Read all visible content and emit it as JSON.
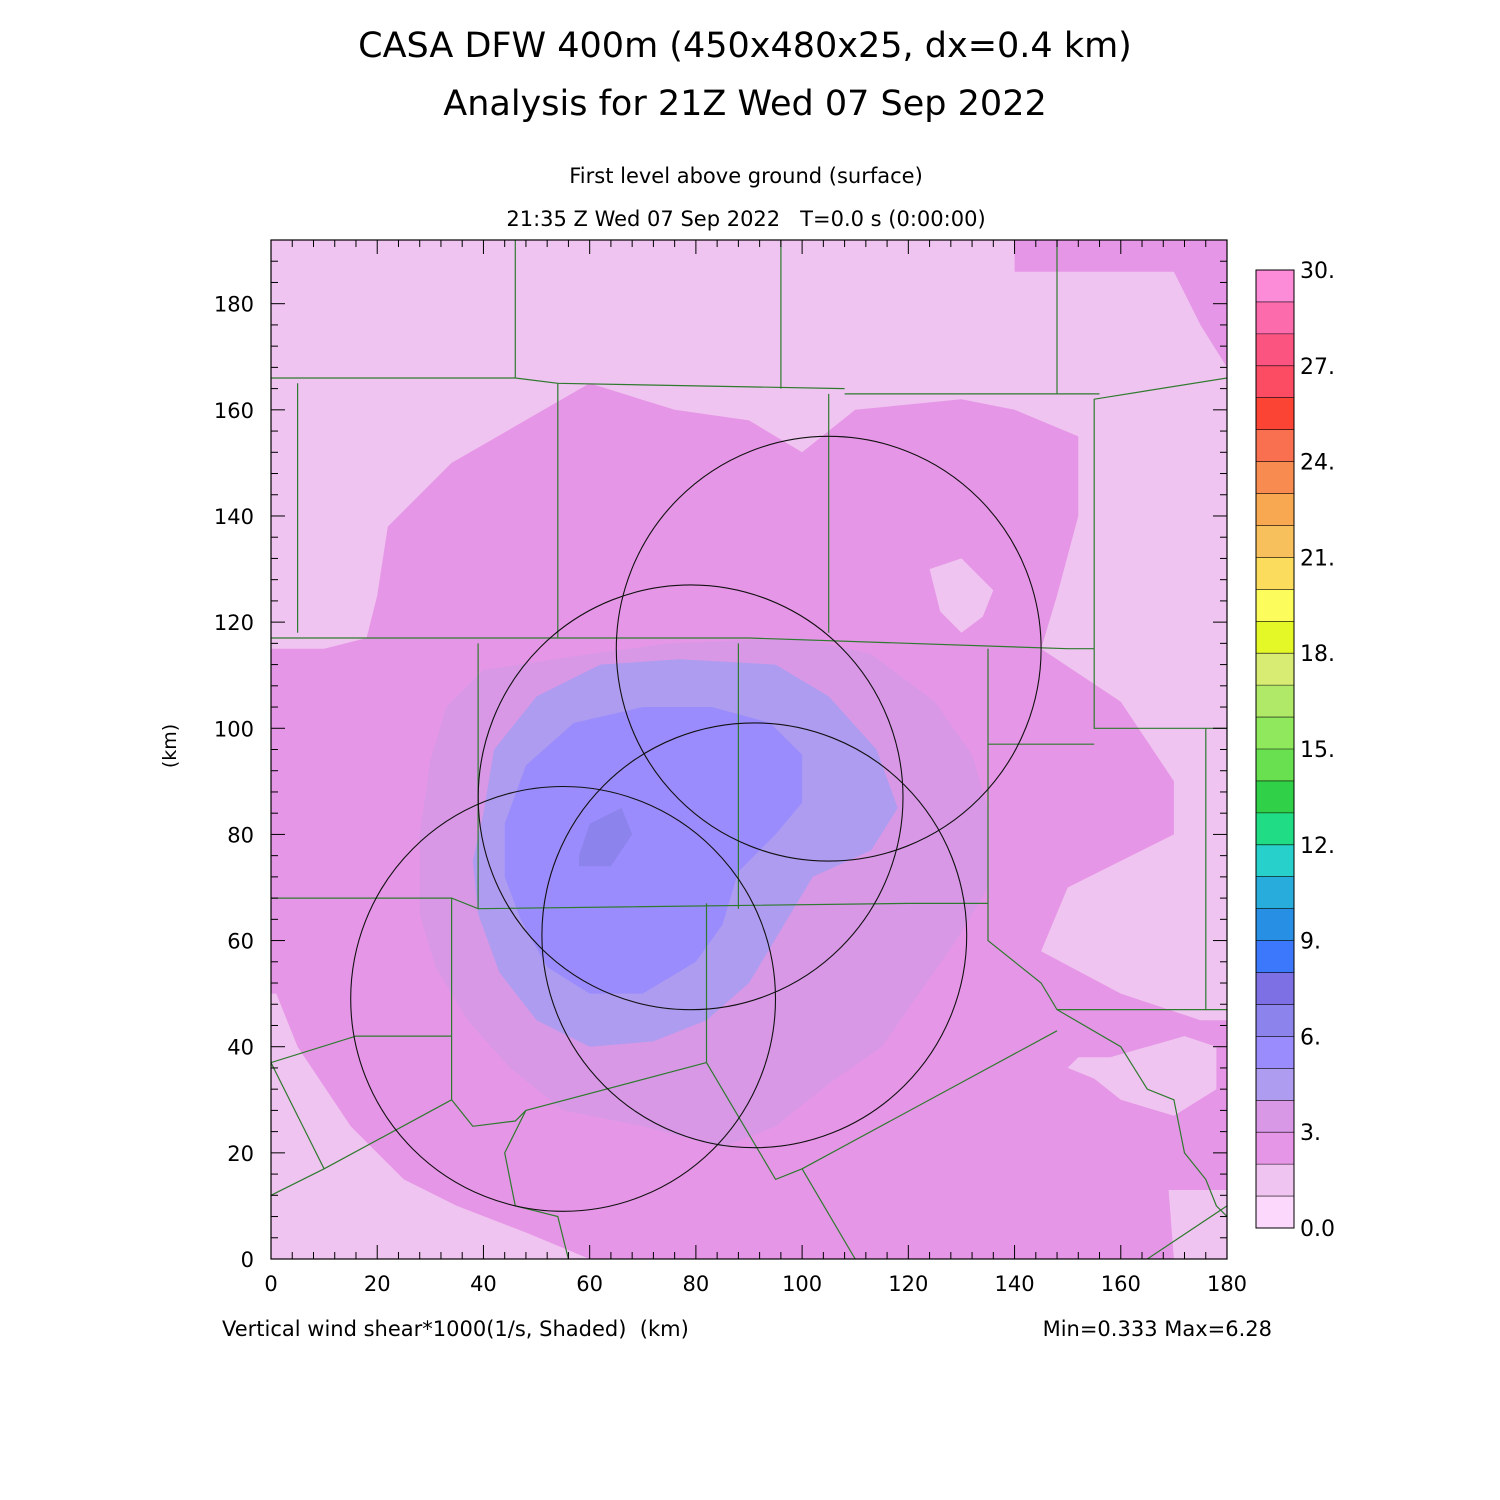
{
  "header": {
    "title_line1": "CASA DFW 400m (450x480x25, dx=0.4 km)",
    "title_line2": "Analysis for 21Z Wed 07 Sep 2022"
  },
  "subheader": {
    "level": "First level above ground (surface)",
    "time": "21:35 Z Wed 07 Sep 2022   T=0.0 s (0:00:00)"
  },
  "footer": {
    "field": "Vertical wind shear*1000(1/s, Shaded)  (km)",
    "minmax": "Min=0.333 Max=6.28"
  },
  "chart_data": {
    "type": "heatmap",
    "ylabel": "(km)",
    "xlim": [
      0,
      180
    ],
    "ylim": [
      0,
      192
    ],
    "x_ticks": [
      0,
      20,
      40,
      60,
      80,
      100,
      120,
      140,
      160,
      180
    ],
    "y_ticks": [
      0,
      20,
      40,
      60,
      80,
      100,
      120,
      140,
      160,
      180
    ],
    "x_tick_labels": [
      "0",
      "20",
      "40",
      "60",
      "80",
      "100",
      "120",
      "140",
      "160",
      "180"
    ],
    "y_tick_labels": [
      "0",
      "20",
      "40",
      "60",
      "80",
      "100",
      "120",
      "140",
      "160",
      "180"
    ],
    "min": 0.333,
    "max": 6.28,
    "colorbar": {
      "range": [
        0,
        30
      ],
      "step": 1.5,
      "tick_values": [
        0,
        3,
        6,
        9,
        12,
        15,
        18,
        21,
        24,
        27,
        30
      ],
      "tick_labels": [
        "0.0",
        "3.",
        "6.",
        "9.",
        "12.",
        "15.",
        "18.",
        "21.",
        "24.",
        "27.",
        "30."
      ],
      "colors": [
        "#fcd8fc",
        "#f0c4f0",
        "#e696e6",
        "#d898e6",
        "#ae9cf0",
        "#9a8cfc",
        "#8c84ec",
        "#7c70e4",
        "#3c78fc",
        "#2890e4",
        "#28acdc",
        "#28d0cc",
        "#20dc84",
        "#30d048",
        "#68e050",
        "#90e85c",
        "#b0e868",
        "#d8ec74",
        "#e4f828",
        "#fcfc5c",
        "#fcdc5c",
        "#f8c05c",
        "#f8a850",
        "#f88c50",
        "#f87050",
        "#fc4434",
        "#fc4c64",
        "#fc5480",
        "#fc6cac",
        "#fc8cd8"
      ]
    },
    "radar_rings": [
      {
        "center": [
          55,
          49
        ],
        "radius": 40
      },
      {
        "center": [
          79,
          87
        ],
        "radius": 40
      },
      {
        "center": [
          91,
          61
        ],
        "radius": 40
      },
      {
        "center": [
          105,
          115
        ],
        "radius": 40
      }
    ],
    "shading": [
      {
        "level": 2,
        "polygon": [
          [
            27,
            192
          ],
          [
            140,
            192
          ],
          [
            140,
            186
          ],
          [
            170,
            186
          ],
          [
            175,
            176
          ],
          [
            180,
            168
          ],
          [
            180,
            13
          ],
          [
            169,
            13
          ],
          [
            170,
            0
          ],
          [
            60,
            0
          ],
          [
            48,
            5
          ],
          [
            35,
            10
          ],
          [
            25,
            15
          ],
          [
            15,
            25
          ],
          [
            5,
            40
          ],
          [
            1,
            50
          ],
          [
            0,
            50
          ],
          [
            0,
            115
          ],
          [
            10,
            115
          ],
          [
            18,
            117
          ],
          [
            20,
            125
          ],
          [
            22,
            138
          ],
          [
            34,
            150
          ],
          [
            60,
            165
          ],
          [
            76,
            160
          ],
          [
            90,
            158
          ],
          [
            100,
            152
          ],
          [
            110,
            160
          ],
          [
            130,
            162
          ],
          [
            140,
            160
          ],
          [
            152,
            155
          ],
          [
            152,
            140
          ],
          [
            148,
            125
          ],
          [
            145,
            115
          ],
          [
            160,
            105
          ],
          [
            170,
            90
          ],
          [
            170,
            80
          ],
          [
            150,
            70
          ],
          [
            145,
            58
          ],
          [
            160,
            50
          ],
          [
            175,
            45
          ],
          [
            180,
            45
          ],
          [
            180,
            192
          ],
          [
            27,
            192
          ]
        ]
      },
      {
        "level": 3,
        "polygon": [
          [
            30,
            94
          ],
          [
            33,
            104
          ],
          [
            40,
            111
          ],
          [
            60,
            114
          ],
          [
            75,
            116
          ],
          [
            100,
            117
          ],
          [
            113,
            114
          ],
          [
            125,
            105
          ],
          [
            132,
            95
          ],
          [
            135,
            85
          ],
          [
            135,
            70
          ],
          [
            129,
            60
          ],
          [
            122,
            50
          ],
          [
            115,
            40
          ],
          [
            105,
            33
          ],
          [
            95,
            25
          ],
          [
            85,
            21
          ],
          [
            70,
            25
          ],
          [
            55,
            28
          ],
          [
            45,
            36
          ],
          [
            37,
            45
          ],
          [
            31,
            55
          ],
          [
            28,
            65
          ],
          [
            28,
            80
          ],
          [
            30,
            94
          ]
        ]
      },
      {
        "level": 4,
        "polygon": [
          [
            40,
            84
          ],
          [
            42,
            96
          ],
          [
            50,
            106
          ],
          [
            62,
            112
          ],
          [
            77,
            113
          ],
          [
            95,
            112
          ],
          [
            105,
            106
          ],
          [
            114,
            96
          ],
          [
            118,
            85
          ],
          [
            113,
            77
          ],
          [
            102,
            72
          ],
          [
            96,
            62
          ],
          [
            90,
            52
          ],
          [
            82,
            45
          ],
          [
            72,
            41
          ],
          [
            60,
            40
          ],
          [
            50,
            45
          ],
          [
            43,
            54
          ],
          [
            39,
            65
          ],
          [
            38,
            75
          ],
          [
            40,
            84
          ]
        ]
      },
      {
        "level": 5,
        "polygon": [
          [
            44,
            82
          ],
          [
            48,
            93
          ],
          [
            57,
            101
          ],
          [
            70,
            104
          ],
          [
            83,
            104
          ],
          [
            94,
            101
          ],
          [
            100,
            95
          ],
          [
            100,
            86
          ],
          [
            95,
            80
          ],
          [
            88,
            73
          ],
          [
            85,
            63
          ],
          [
            80,
            56
          ],
          [
            70,
            50
          ],
          [
            60,
            50
          ],
          [
            52,
            55
          ],
          [
            47,
            64
          ],
          [
            44,
            72
          ],
          [
            44,
            82
          ]
        ]
      },
      {
        "level": 6,
        "polygon": [
          [
            58,
            76
          ],
          [
            60,
            82
          ],
          [
            66,
            85
          ],
          [
            68,
            80
          ],
          [
            64,
            74
          ],
          [
            58,
            74
          ],
          [
            58,
            76
          ]
        ]
      },
      {
        "level": 1,
        "polygon": [
          [
            150,
            36
          ],
          [
            155,
            34
          ],
          [
            160,
            30
          ],
          [
            170,
            27
          ],
          [
            178,
            32
          ],
          [
            178,
            40
          ],
          [
            172,
            42
          ],
          [
            165,
            40
          ],
          [
            158,
            38
          ],
          [
            152,
            38
          ],
          [
            150,
            36
          ]
        ]
      },
      {
        "level": 1,
        "polygon": [
          [
            124,
            130
          ],
          [
            126,
            122
          ],
          [
            130,
            118
          ],
          [
            134,
            121
          ],
          [
            136,
            126
          ],
          [
            130,
            132
          ],
          [
            124,
            130
          ]
        ]
      },
      {
        "level": 1,
        "polygon": [
          [
            10,
            180
          ],
          [
            12,
            185
          ],
          [
            16,
            188
          ],
          [
            20,
            186
          ],
          [
            18,
            180
          ],
          [
            12,
            178
          ],
          [
            10,
            180
          ]
        ]
      }
    ],
    "county_lines": [
      [
        [
          0,
          166
        ],
        [
          46,
          166
        ]
      ],
      [
        [
          46,
          192
        ],
        [
          46,
          166
        ]
      ],
      [
        [
          46,
          166
        ],
        [
          54,
          165
        ],
        [
          108,
          164
        ]
      ],
      [
        [
          96,
          192
        ],
        [
          96,
          164
        ]
      ],
      [
        [
          148,
          192
        ],
        [
          148,
          163
        ],
        [
          156,
          163
        ]
      ],
      [
        [
          148,
          163
        ],
        [
          108,
          163
        ]
      ],
      [
        [
          105,
          163
        ],
        [
          105,
          118
        ]
      ],
      [
        [
          5,
          165
        ],
        [
          5,
          118
        ]
      ],
      [
        [
          54,
          165
        ],
        [
          54,
          117
        ]
      ],
      [
        [
          0,
          117
        ],
        [
          90,
          117
        ],
        [
          150,
          115
        ],
        [
          155,
          115
        ]
      ],
      [
        [
          155,
          115
        ],
        [
          155,
          162
        ],
        [
          180,
          166
        ]
      ],
      [
        [
          155,
          115
        ],
        [
          155,
          100
        ],
        [
          175,
          100
        ],
        [
          180,
          100
        ]
      ],
      [
        [
          39,
          116
        ],
        [
          39,
          66
        ]
      ],
      [
        [
          88,
          116
        ],
        [
          88,
          66
        ]
      ],
      [
        [
          135,
          115
        ],
        [
          135,
          97
        ],
        [
          155,
          97
        ]
      ],
      [
        [
          135,
          97
        ],
        [
          135,
          67
        ]
      ],
      [
        [
          0,
          68
        ],
        [
          34,
          68
        ],
        [
          39,
          66
        ],
        [
          120,
          67
        ],
        [
          135,
          67
        ]
      ],
      [
        [
          34,
          68
        ],
        [
          34,
          42
        ]
      ],
      [
        [
          34,
          42
        ],
        [
          16,
          42
        ],
        [
          0,
          37
        ]
      ],
      [
        [
          34,
          42
        ],
        [
          34,
          30
        ],
        [
          38,
          25
        ],
        [
          46,
          26
        ],
        [
          48,
          28
        ],
        [
          82,
          37
        ]
      ],
      [
        [
          82,
          67
        ],
        [
          82,
          37
        ]
      ],
      [
        [
          82,
          37
        ],
        [
          95,
          15
        ],
        [
          100,
          17
        ],
        [
          148,
          43
        ]
      ],
      [
        [
          34,
          30
        ],
        [
          10,
          17
        ],
        [
          0,
          12
        ]
      ],
      [
        [
          0,
          37
        ],
        [
          10,
          17
        ]
      ],
      [
        [
          135,
          67
        ],
        [
          135,
          60
        ],
        [
          145,
          52
        ],
        [
          148,
          47
        ],
        [
          160,
          40
        ],
        [
          165,
          32
        ],
        [
          170,
          30
        ],
        [
          172,
          20
        ],
        [
          176,
          15
        ],
        [
          178,
          10
        ],
        [
          180,
          8
        ]
      ],
      [
        [
          148,
          47
        ],
        [
          160,
          47
        ],
        [
          180,
          47
        ]
      ],
      [
        [
          176,
          100
        ],
        [
          176,
          47
        ]
      ],
      [
        [
          100,
          17
        ],
        [
          110,
          0
        ]
      ],
      [
        [
          48,
          28
        ],
        [
          44,
          20
        ],
        [
          46,
          10
        ],
        [
          50,
          9
        ],
        [
          54,
          8
        ],
        [
          56,
          0
        ]
      ],
      [
        [
          165,
          0
        ],
        [
          180,
          10
        ]
      ]
    ]
  }
}
